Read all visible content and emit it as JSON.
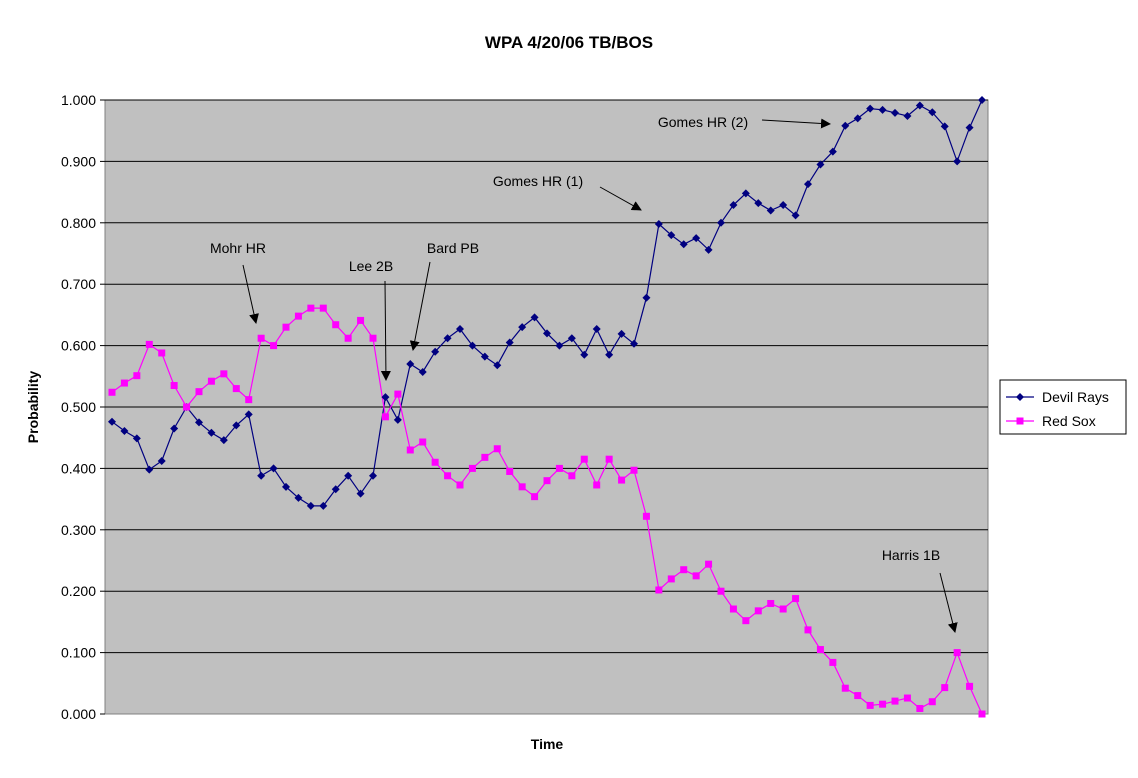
{
  "chart_data": {
    "type": "line",
    "title": "WPA 4/20/06 TB/BOS",
    "xlabel": "Time",
    "ylabel": "Probability",
    "ylim": [
      0,
      1
    ],
    "yticks": [
      "0.000",
      "0.100",
      "0.200",
      "0.300",
      "0.400",
      "0.500",
      "0.600",
      "0.700",
      "0.800",
      "0.900",
      "1.000"
    ],
    "grid": true,
    "legend_position": "right",
    "series": [
      {
        "name": "Devil Rays",
        "color": "#000080",
        "marker": "diamond",
        "values": [
          0.476,
          0.461,
          0.449,
          0.398,
          0.412,
          0.465,
          0.5,
          0.475,
          0.458,
          0.446,
          0.47,
          0.488,
          0.388,
          0.4,
          0.37,
          0.352,
          0.339,
          0.339,
          0.366,
          0.388,
          0.359,
          0.388,
          0.516,
          0.479,
          0.57,
          0.557,
          0.59,
          0.612,
          0.627,
          0.6,
          0.582,
          0.568,
          0.605,
          0.63,
          0.646,
          0.62,
          0.6,
          0.612,
          0.585,
          0.627,
          0.585,
          0.619,
          0.603,
          0.678,
          0.798,
          0.78,
          0.765,
          0.775,
          0.756,
          0.8,
          0.829,
          0.848,
          0.832,
          0.82,
          0.829,
          0.812,
          0.863,
          0.895,
          0.916,
          0.958,
          0.97,
          0.986,
          0.984,
          0.979,
          0.974,
          0.991,
          0.98,
          0.957,
          0.9,
          0.955,
          1.0
        ]
      },
      {
        "name": "Red Sox",
        "color": "#ff00ff",
        "marker": "square",
        "values": [
          0.524,
          0.539,
          0.551,
          0.602,
          0.588,
          0.535,
          0.5,
          0.525,
          0.542,
          0.554,
          0.53,
          0.512,
          0.612,
          0.6,
          0.63,
          0.648,
          0.661,
          0.661,
          0.634,
          0.612,
          0.641,
          0.612,
          0.484,
          0.521,
          0.43,
          0.443,
          0.41,
          0.388,
          0.373,
          0.4,
          0.418,
          0.432,
          0.395,
          0.37,
          0.354,
          0.38,
          0.4,
          0.388,
          0.415,
          0.373,
          0.415,
          0.381,
          0.397,
          0.322,
          0.202,
          0.22,
          0.235,
          0.225,
          0.244,
          0.2,
          0.171,
          0.152,
          0.168,
          0.18,
          0.171,
          0.188,
          0.137,
          0.105,
          0.084,
          0.042,
          0.03,
          0.014,
          0.016,
          0.021,
          0.026,
          0.009,
          0.02,
          0.043,
          0.1,
          0.045,
          0.0
        ]
      }
    ],
    "annotations": [
      {
        "text": "Mohr HR",
        "index": 12,
        "series": "Red Sox"
      },
      {
        "text": "Lee 2B",
        "index": 22,
        "series": "Devil Rays"
      },
      {
        "text": "Bard PB",
        "index": 24,
        "series": "Devil Rays"
      },
      {
        "text": "Gomes HR (1)",
        "index": 44,
        "series": "Devil Rays"
      },
      {
        "text": "Gomes HR (2)",
        "index": 59,
        "series": "Devil Rays"
      },
      {
        "text": "Harris 1B",
        "index": 68,
        "series": "Red Sox"
      }
    ]
  }
}
